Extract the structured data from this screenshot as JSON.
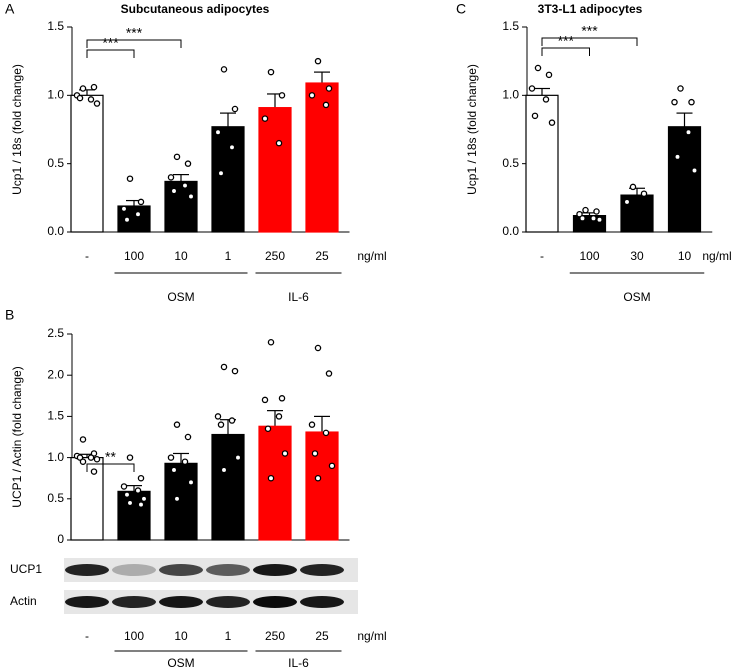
{
  "chart_data": [
    {
      "type": "bar",
      "panel": "A",
      "title": "Subcutaneous adipocytes",
      "y_label": "Ucp1 / 18s (fold change)",
      "categories": [
        "-",
        "100",
        "10",
        "1",
        "250",
        "25"
      ],
      "unit": "ng/ml",
      "groups": [
        {
          "label": "OSM",
          "members": [
            1,
            2,
            3
          ]
        },
        {
          "label": "IL-6",
          "members": [
            4,
            5
          ]
        }
      ],
      "values": [
        1.0,
        0.19,
        0.37,
        0.77,
        0.91,
        1.09
      ],
      "errors": [
        0.04,
        0.04,
        0.05,
        0.1,
        0.1,
        0.08
      ],
      "colors": [
        "#ffffff",
        "#000000",
        "#000000",
        "#000000",
        "#ff0000",
        "#ff0000"
      ],
      "points": [
        [
          1.05,
          1.06,
          1.0,
          0.97,
          0.98,
          0.94
        ],
        [
          0.39,
          0.22,
          0.17,
          0.13,
          0.09
        ],
        [
          0.55,
          0.5,
          0.4,
          0.34,
          0.3,
          0.26
        ],
        [
          1.19,
          0.9,
          0.73,
          0.62,
          0.43
        ],
        [
          1.17,
          1.0,
          0.83,
          0.65
        ],
        [
          1.25,
          1.05,
          1.0,
          0.93
        ]
      ],
      "significance": [
        {
          "label": "***",
          "from": 0,
          "to": 1
        },
        {
          "label": "***",
          "from": 0,
          "to": 2
        }
      ],
      "ylim": [
        0,
        1.5
      ],
      "yticks": [
        {
          "value": 0,
          "label": "0.0"
        },
        0.5,
        {
          "value": 1,
          "label": "1.0"
        },
        1.5
      ]
    },
    {
      "type": "bar",
      "panel": "B",
      "y_label": "UCP1 / Actin (fold change)",
      "categories": [
        "-",
        "100",
        "10",
        "1",
        "250",
        "25"
      ],
      "unit": "ng/ml",
      "groups": [
        {
          "label": "OSM",
          "members": [
            1,
            2,
            3
          ]
        },
        {
          "label": "IL-6",
          "members": [
            4,
            5
          ]
        }
      ],
      "values": [
        1.0,
        0.59,
        0.93,
        1.28,
        1.38,
        1.31
      ],
      "errors": [
        0.04,
        0.07,
        0.12,
        0.18,
        0.19,
        0.19
      ],
      "colors": [
        "#ffffff",
        "#000000",
        "#000000",
        "#000000",
        "#ff0000",
        "#ff0000"
      ],
      "points": [
        [
          1.22,
          1.05,
          1.02,
          1.0,
          1.0,
          0.98,
          0.95,
          0.83
        ],
        [
          1.0,
          0.75,
          0.65,
          0.6,
          0.55,
          0.5,
          0.45,
          0.43
        ],
        [
          1.4,
          1.25,
          1.0,
          0.95,
          0.85,
          0.7,
          0.5
        ],
        [
          2.1,
          2.05,
          1.5,
          1.45,
          1.4,
          1.0,
          0.85
        ],
        [
          2.4,
          1.72,
          1.7,
          1.5,
          1.35,
          1.05,
          0.75
        ],
        [
          2.33,
          2.02,
          1.4,
          1.3,
          1.05,
          0.9,
          0.75
        ]
      ],
      "significance": [
        {
          "label": "**",
          "from": 0,
          "to": 1
        }
      ],
      "blot_labels": [
        "UCP1",
        "Actin"
      ],
      "ylim": [
        0,
        2.5
      ],
      "yticks": [
        0,
        0.5,
        {
          "value": 1,
          "label": "1.0"
        },
        1.5,
        {
          "value": 2,
          "label": "2.0"
        },
        2.5
      ]
    },
    {
      "type": "bar",
      "panel": "C",
      "title": "3T3-L1 adipocytes",
      "y_label": "Ucp1 / 18s (fold change)",
      "categories": [
        "-",
        "100",
        "30",
        "10"
      ],
      "unit": "ng/ml",
      "groups": [
        {
          "label": "OSM",
          "members": [
            1,
            2,
            3
          ]
        }
      ],
      "values": [
        1.0,
        0.12,
        0.27,
        0.77
      ],
      "errors": [
        0.05,
        0.02,
        0.05,
        0.1
      ],
      "colors": [
        "#ffffff",
        "#000000",
        "#000000",
        "#000000"
      ],
      "points": [
        [
          1.2,
          1.15,
          1.05,
          0.97,
          0.85,
          0.8
        ],
        [
          0.16,
          0.15,
          0.13,
          0.1,
          0.1,
          0.09
        ],
        [
          0.33,
          0.28,
          0.22
        ],
        [
          1.05,
          0.95,
          0.95,
          0.73,
          0.55,
          0.45
        ]
      ],
      "significance": [
        {
          "label": "***",
          "from": 0,
          "to": 1
        },
        {
          "label": "***",
          "from": 0,
          "to": 2
        }
      ],
      "ylim": [
        0,
        1.5
      ],
      "yticks": [
        {
          "value": 0,
          "label": "0.0"
        },
        0.5,
        {
          "value": 1,
          "label": "1.0"
        },
        1.5
      ]
    }
  ]
}
